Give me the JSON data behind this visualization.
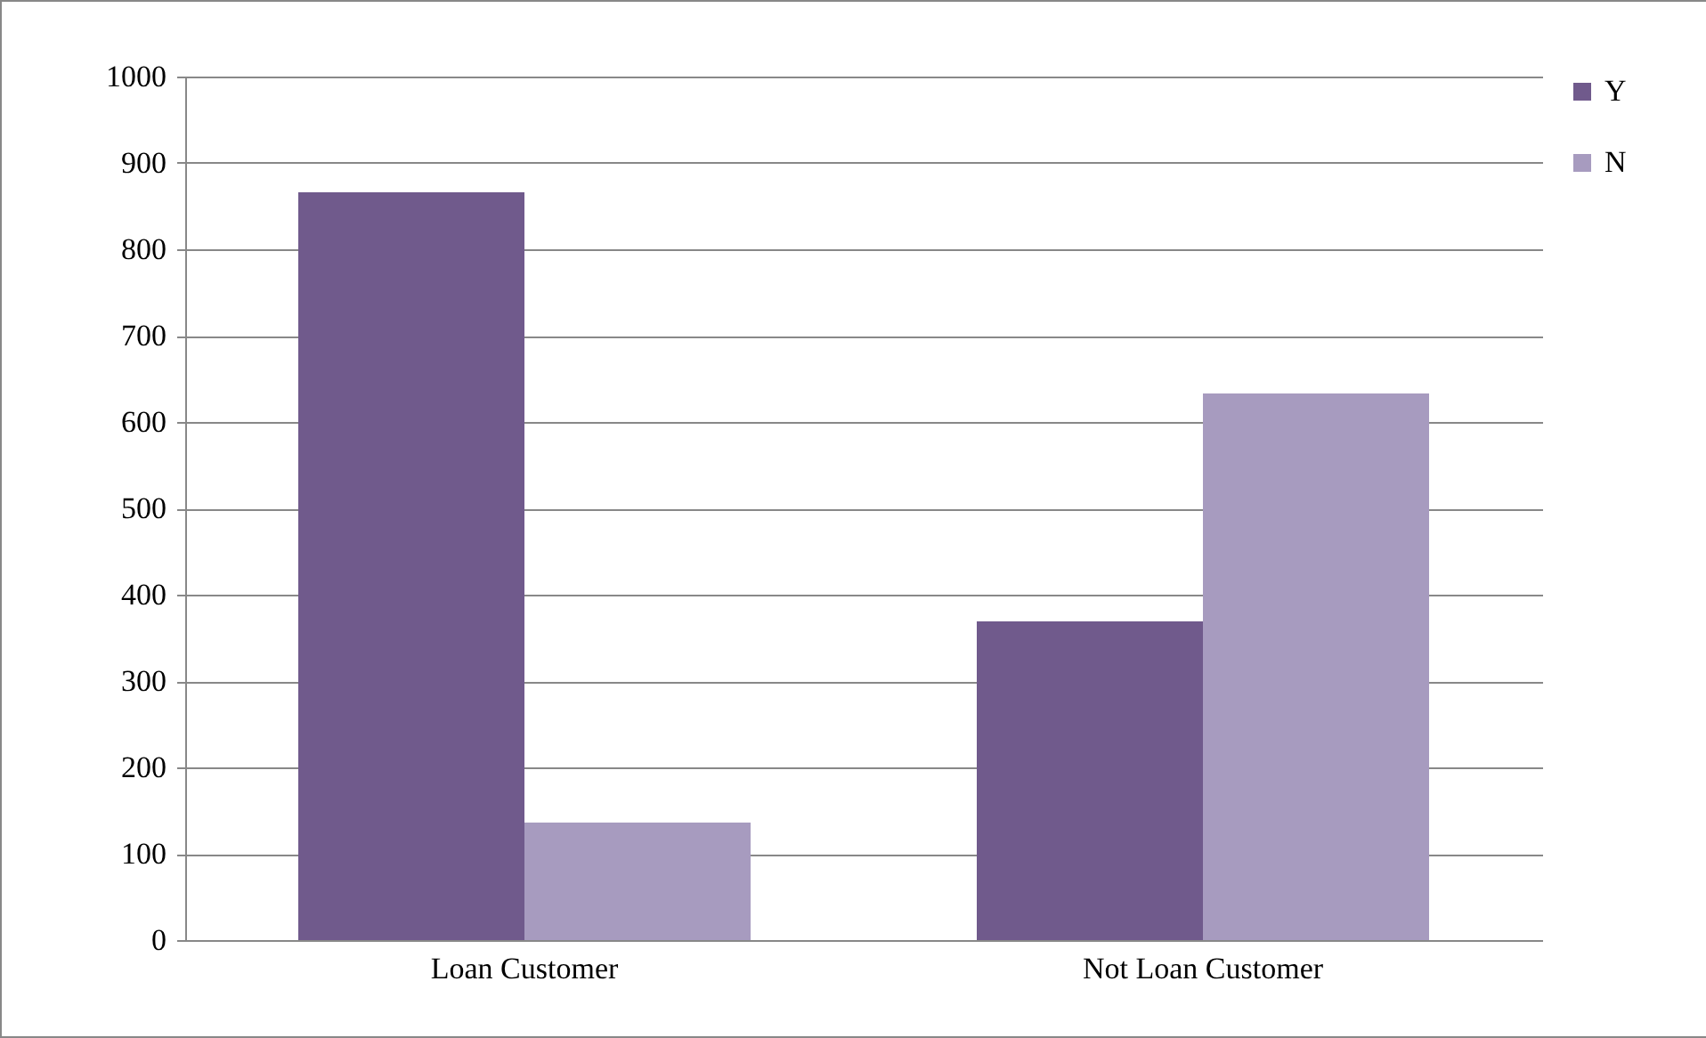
{
  "chart_data": {
    "type": "bar",
    "categories": [
      "Loan Customer",
      "Not Loan Customer"
    ],
    "series": [
      {
        "name": "Y",
        "color": "#705a8c",
        "values": [
          866,
          369
        ]
      },
      {
        "name": "N",
        "color": "#a79bbf",
        "values": [
          136,
          633
        ]
      }
    ],
    "ylim": [
      0,
      1000
    ],
    "yticks": [
      0,
      100,
      200,
      300,
      400,
      500,
      600,
      700,
      800,
      900,
      1000
    ],
    "grid": "y",
    "legend": "right"
  }
}
